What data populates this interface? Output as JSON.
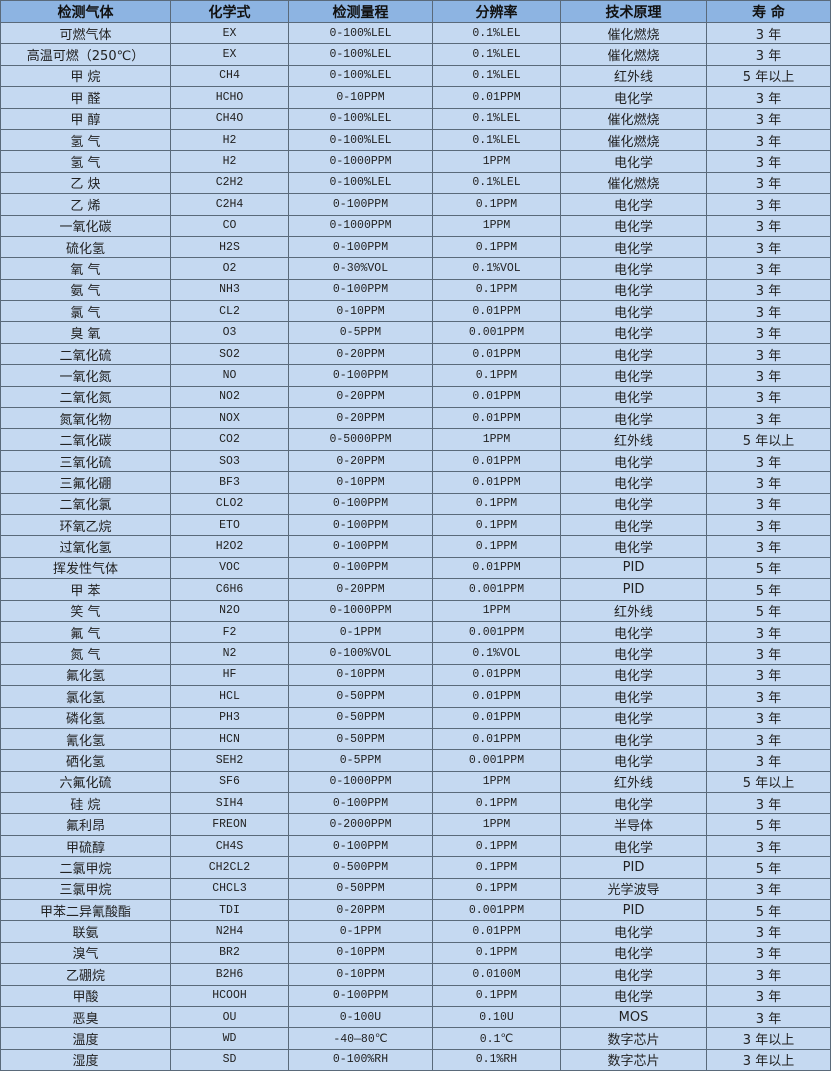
{
  "colors": {
    "header_bg": "#8DB4E2",
    "row_bg": "#C5D9F1"
  },
  "headers": [
    "检测气体",
    "化学式",
    "检测量程",
    "分辨率",
    "技术原理",
    "寿 命"
  ],
  "rows": [
    [
      "可燃气体",
      "EX",
      "0-100%LEL",
      "0.1%LEL",
      "催化燃烧",
      "3 年"
    ],
    [
      "高温可燃（250℃）",
      "EX",
      "0-100%LEL",
      "0.1%LEL",
      "催化燃烧",
      "3 年"
    ],
    [
      "甲 烷",
      "CH4",
      "0-100%LEL",
      "0.1%LEL",
      "红外线",
      "5 年以上"
    ],
    [
      "甲 醛",
      "HCHO",
      "0-10PPM",
      "0.01PPM",
      "电化学",
      "3 年"
    ],
    [
      "甲 醇",
      "CH4O",
      "0-100%LEL",
      "0.1%LEL",
      "催化燃烧",
      "3 年"
    ],
    [
      "氢 气",
      "H2",
      "0-100%LEL",
      "0.1%LEL",
      "催化燃烧",
      "3 年"
    ],
    [
      "氢 气",
      "H2",
      "0-1000PPM",
      "1PPM",
      "电化学",
      "3 年"
    ],
    [
      "乙 炔",
      "C2H2",
      "0-100%LEL",
      "0.1%LEL",
      "催化燃烧",
      "3 年"
    ],
    [
      "乙 烯",
      "C2H4",
      "0-100PPM",
      "0.1PPM",
      "电化学",
      "3 年"
    ],
    [
      "一氧化碳",
      "CO",
      "0-1000PPM",
      "1PPM",
      "电化学",
      "3 年"
    ],
    [
      "硫化氢",
      "H2S",
      "0-100PPM",
      "0.1PPM",
      "电化学",
      "3 年"
    ],
    [
      "氧 气",
      "O2",
      "0-30%VOL",
      "0.1%VOL",
      "电化学",
      "3 年"
    ],
    [
      "氨 气",
      "NH3",
      "0-100PPM",
      "0.1PPM",
      "电化学",
      "3 年"
    ],
    [
      "氯 气",
      "CL2",
      "0-10PPM",
      "0.01PPM",
      "电化学",
      "3 年"
    ],
    [
      "臭 氧",
      "O3",
      "0-5PPM",
      "0.001PPM",
      "电化学",
      "3 年"
    ],
    [
      "二氧化硫",
      "SO2",
      "0-20PPM",
      "0.01PPM",
      "电化学",
      "3 年"
    ],
    [
      "一氧化氮",
      "NO",
      "0-100PPM",
      "0.1PPM",
      "电化学",
      "3 年"
    ],
    [
      "二氧化氮",
      "NO2",
      "0-20PPM",
      "0.01PPM",
      "电化学",
      "3 年"
    ],
    [
      "氮氧化物",
      "NOX",
      "0-20PPM",
      "0.01PPM",
      "电化学",
      "3 年"
    ],
    [
      "二氧化碳",
      "CO2",
      "0-5000PPM",
      "1PPM",
      "红外线",
      "5 年以上"
    ],
    [
      "三氧化硫",
      "SO3",
      "0-20PPM",
      "0.01PPM",
      "电化学",
      "3 年"
    ],
    [
      "三氟化硼",
      "BF3",
      "0-10PPM",
      "0.01PPM",
      "电化学",
      "3 年"
    ],
    [
      "二氧化氯",
      "CLO2",
      "0-100PPM",
      "0.1PPM",
      "电化学",
      "3 年"
    ],
    [
      "环氧乙烷",
      "ETO",
      "0-100PPM",
      "0.1PPM",
      "电化学",
      "3 年"
    ],
    [
      "过氧化氢",
      "H2O2",
      "0-100PPM",
      "0.1PPM",
      "电化学",
      "3 年"
    ],
    [
      "挥发性气体",
      "VOC",
      "0-100PPM",
      "0.01PPM",
      "PID",
      "5 年"
    ],
    [
      "甲 苯",
      "C6H6",
      "0-20PPM",
      "0.001PPM",
      "PID",
      "5 年"
    ],
    [
      "笑 气",
      "N2O",
      "0-1000PPM",
      "1PPM",
      "红外线",
      "5 年"
    ],
    [
      "氟 气",
      "F2",
      "0-1PPM",
      "0.001PPM",
      "电化学",
      "3 年"
    ],
    [
      "氮 气",
      "N2",
      "0-100%VOL",
      "0.1%VOL",
      "电化学",
      "3 年"
    ],
    [
      "氟化氢",
      "HF",
      "0-10PPM",
      "0.01PPM",
      "电化学",
      "3 年"
    ],
    [
      "氯化氢",
      "HCL",
      "0-50PPM",
      "0.01PPM",
      "电化学",
      "3 年"
    ],
    [
      "磷化氢",
      "PH3",
      "0-50PPM",
      "0.01PPM",
      "电化学",
      "3 年"
    ],
    [
      "氰化氢",
      "HCN",
      "0-50PPM",
      "0.01PPM",
      "电化学",
      "3 年"
    ],
    [
      "硒化氢",
      "SEH2",
      "0-5PPM",
      "0.001PPM",
      "电化学",
      "3 年"
    ],
    [
      "六氟化硫",
      "SF6",
      "0-1000PPM",
      "1PPM",
      "红外线",
      "5 年以上"
    ],
    [
      "硅 烷",
      "SIH4",
      "0-100PPM",
      "0.1PPM",
      "电化学",
      "3 年"
    ],
    [
      "氟利昂",
      "FREON",
      "0-2000PPM",
      "1PPM",
      "半导体",
      "5 年"
    ],
    [
      "甲硫醇",
      "CH4S",
      "0-100PPM",
      "0.1PPM",
      "电化学",
      "3 年"
    ],
    [
      "二氯甲烷",
      "CH2CL2",
      "0-500PPM",
      "0.1PPM",
      "PID",
      "5 年"
    ],
    [
      "三氯甲烷",
      "CHCL3",
      "0-50PPM",
      "0.1PPM",
      "光学波导",
      "3 年"
    ],
    [
      "甲苯二异氰酸酯",
      "TDI",
      "0-20PPM",
      "0.001PPM",
      "PID",
      "5 年"
    ],
    [
      "联氨",
      "N2H4",
      "0-1PPM",
      "0.01PPM",
      "电化学",
      "3 年"
    ],
    [
      "溴气",
      "BR2",
      "0-10PPM",
      "0.1PPM",
      "电化学",
      "3 年"
    ],
    [
      "乙硼烷",
      "B2H6",
      "0-10PPM",
      "0.0100M",
      "电化学",
      "3 年"
    ],
    [
      "甲酸",
      "HCOOH",
      "0-100PPM",
      "0.1PPM",
      "电化学",
      "3 年"
    ],
    [
      "恶臭",
      "OU",
      "0-100U",
      "0.10U",
      "MOS",
      "3 年"
    ],
    [
      "温度",
      "WD",
      "-40—80℃",
      "0.1℃",
      "数字芯片",
      "3 年以上"
    ],
    [
      "湿度",
      "SD",
      "0-100%RH",
      "0.1%RH",
      "数字芯片",
      "3 年以上"
    ]
  ]
}
